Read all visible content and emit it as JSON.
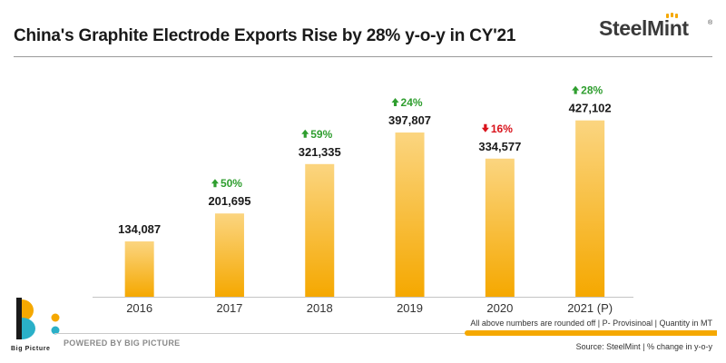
{
  "header": {
    "title": "China's Graphite Electrode Exports Rise by 28% y-o-y in CY'21",
    "brand_text": "SteelMint",
    "brand_mark": "®"
  },
  "colors": {
    "bar_top": "#fbd580",
    "bar_bottom": "#f5a800",
    "increase": "#2f9e2f",
    "decrease": "#d9121b",
    "accent": "#f5a800"
  },
  "chart_data": {
    "type": "bar",
    "title": "China's Graphite Electrode Exports Rise by 28% y-o-y in CY'21",
    "xlabel": "",
    "ylabel": "Quantity in MT",
    "ylim": [
      0,
      450000
    ],
    "grid": false,
    "categories": [
      "2016",
      "2017",
      "2018",
      "2019",
      "2020",
      "2021 (P)"
    ],
    "values": [
      134087,
      201695,
      321335,
      397807,
      334577,
      427102
    ],
    "value_labels": [
      "134,087",
      "201,695",
      "321,335",
      "397,807",
      "334,577",
      "427,102"
    ],
    "yoy_change": [
      null,
      {
        "label": "50%",
        "direction": "up"
      },
      {
        "label": "59%",
        "direction": "up"
      },
      {
        "label": "24%",
        "direction": "up"
      },
      {
        "label": "16%",
        "direction": "down"
      },
      {
        "label": "28%",
        "direction": "up"
      }
    ]
  },
  "footer": {
    "logo_name": "Big Picture",
    "powered_by": "POWERED BY BIG PICTURE",
    "note": "All above numbers are rounded off | P- Provisinoal | Quantity in MT",
    "source": "Source: SteelMint | % change in y-o-y"
  }
}
